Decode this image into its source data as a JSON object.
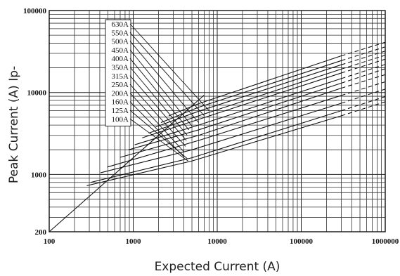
{
  "chart_data": {
    "type": "line",
    "title": "",
    "xlabel": "Expected Current (A)",
    "ylabel": "Peak Current (A)  Ip-",
    "xscale": "log",
    "yscale": "log",
    "xlim": [
      100,
      1000000
    ],
    "ylim": [
      200,
      100000
    ],
    "grid": true,
    "x_tick_labels": [
      "100",
      "1000",
      "10000",
      "100000",
      "1000000"
    ],
    "y_tick_labels": [
      "200",
      "1000",
      "10000",
      "100000"
    ],
    "legend_position": "upper-left inset",
    "unlimited_peak_line": {
      "x": [
        100,
        7000
      ],
      "y": [
        200,
        9300
      ]
    },
    "series": [
      {
        "name": "100A",
        "values": [
          [
            280,
            730
          ],
          [
            5000,
            1460
          ],
          [
            300000,
            5200
          ],
          [
            1000000,
            7700
          ]
        ],
        "label_anchor": [
          4500,
          1460
        ]
      },
      {
        "name": "125A",
        "values": [
          [
            310,
            800
          ],
          [
            5000,
            1600
          ],
          [
            300000,
            6000
          ],
          [
            1000000,
            8900
          ]
        ],
        "label_anchor": [
          4400,
          1560
        ]
      },
      {
        "name": "160A",
        "values": [
          [
            410,
            1050
          ],
          [
            5000,
            2000
          ],
          [
            300000,
            7400
          ],
          [
            1000000,
            11000
          ]
        ],
        "label_anchor": [
          4000,
          1650
        ]
      },
      {
        "name": "200A",
        "values": [
          [
            490,
            1230
          ],
          [
            6000,
            2600
          ],
          [
            300000,
            9200
          ],
          [
            1000000,
            13500
          ]
        ],
        "label_anchor": [
          4000,
          1900
        ]
      },
      {
        "name": "250A",
        "values": [
          [
            700,
            1620
          ],
          [
            6000,
            3000
          ],
          [
            300000,
            11300
          ],
          [
            1000000,
            16500
          ]
        ],
        "label_anchor": [
          4200,
          2200
        ]
      },
      {
        "name": "315A",
        "values": [
          [
            880,
            2000
          ],
          [
            6000,
            3500
          ],
          [
            300000,
            13000
          ],
          [
            1000000,
            19500
          ]
        ],
        "label_anchor": [
          4300,
          2600
        ]
      },
      {
        "name": "350A",
        "values": [
          [
            1040,
            2300
          ],
          [
            6000,
            4000
          ],
          [
            300000,
            14800
          ],
          [
            1000000,
            22000
          ]
        ],
        "label_anchor": [
          4400,
          3000
        ]
      },
      {
        "name": "400A",
        "values": [
          [
            1280,
            2800
          ],
          [
            6000,
            4700
          ],
          [
            300000,
            17300
          ],
          [
            1000000,
            25500
          ]
        ],
        "label_anchor": [
          4600,
          3500
        ]
      },
      {
        "name": "450A",
        "values": [
          [
            1530,
            3200
          ],
          [
            6000,
            5200
          ],
          [
            300000,
            19300
          ],
          [
            1000000,
            28500
          ]
        ],
        "label_anchor": [
          5000,
          3900
        ]
      },
      {
        "name": "500A",
        "values": [
          [
            1850,
            3800
          ],
          [
            6000,
            5900
          ],
          [
            300000,
            21800
          ],
          [
            1000000,
            32000
          ]
        ],
        "label_anchor": [
          6000,
          4300
        ]
      },
      {
        "name": "550A",
        "values": [
          [
            2140,
            4300
          ],
          [
            6000,
            6600
          ],
          [
            300000,
            24500
          ],
          [
            1000000,
            36000
          ]
        ],
        "label_anchor": [
          7000,
          5200
        ]
      },
      {
        "name": "630A",
        "values": [
          [
            2650,
            5200
          ],
          [
            6000,
            7300
          ],
          [
            300000,
            28000
          ],
          [
            1000000,
            41000
          ]
        ],
        "label_anchor": [
          8000,
          6000
        ]
      }
    ],
    "dashed_from_x": 300000
  }
}
